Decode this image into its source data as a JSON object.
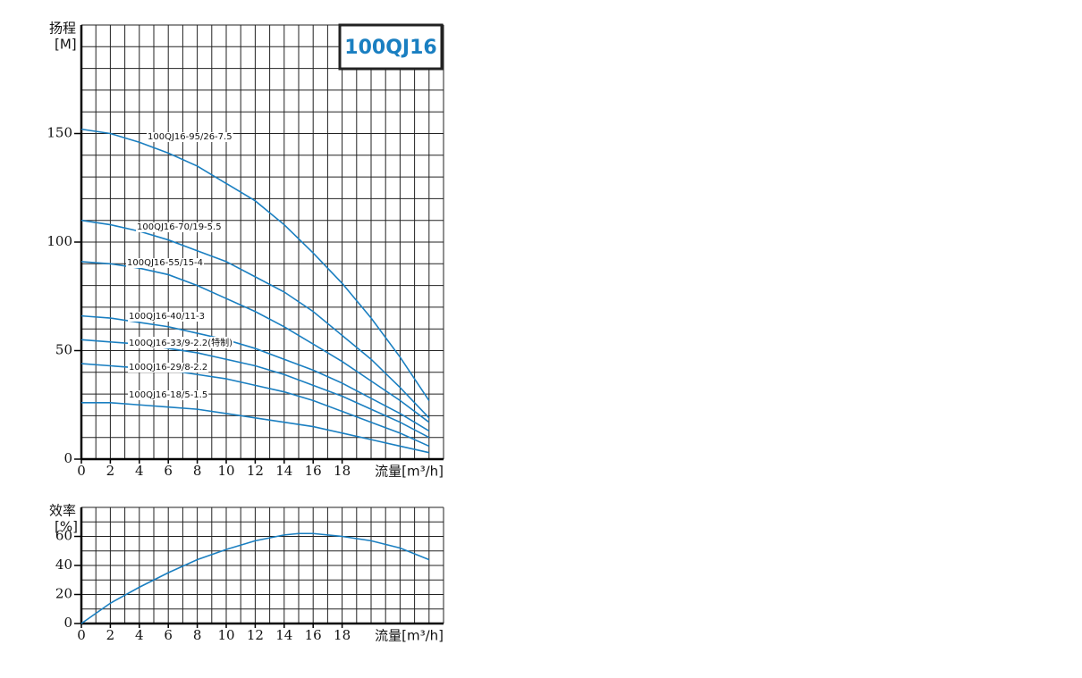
{
  "chart_data": [
    {
      "type": "line",
      "title": "100QJ16",
      "ylabel": [
        "扬程",
        "[M]"
      ],
      "xlabel": "流量[m³/h]",
      "x": [
        0,
        2,
        4,
        6,
        8,
        10,
        12,
        14,
        16,
        18,
        20,
        22,
        24
      ],
      "xlim": [
        0,
        25
      ],
      "xticks": [
        0,
        2,
        4,
        6,
        8,
        10,
        12,
        14,
        16,
        18
      ],
      "ylim": [
        0,
        200
      ],
      "yticks": [
        0,
        50,
        100,
        150
      ],
      "grid": true,
      "series": [
        {
          "name": "100QJ16-95/26-7.5",
          "color": "#1a7fc1",
          "values": [
            152,
            150,
            146,
            141,
            135,
            127,
            119,
            108,
            95,
            81,
            65,
            47,
            27
          ]
        },
        {
          "name": "100QJ16-70/19-5.5",
          "color": "#1a7fc1",
          "values": [
            110,
            108,
            105,
            101,
            96,
            91,
            84,
            77,
            68,
            57,
            46,
            33,
            19
          ]
        },
        {
          "name": "100QJ16-55/15-4",
          "color": "#1a7fc1",
          "values": [
            91,
            90,
            88,
            85,
            80,
            74,
            68,
            61,
            53,
            45,
            36,
            27,
            17
          ]
        },
        {
          "name": "100QJ16-40/11-3",
          "color": "#1a7fc1",
          "values": [
            66,
            65,
            63,
            61,
            58,
            55,
            51,
            46,
            41,
            35,
            28,
            21,
            13
          ]
        },
        {
          "name": "100QJ16-33/9-2.2(特制)",
          "color": "#1a7fc1",
          "values": [
            55,
            54,
            53,
            51,
            49,
            46,
            43,
            39,
            34,
            29,
            23,
            17,
            10
          ]
        },
        {
          "name": "100QJ16-29/8-2.2",
          "color": "#1a7fc1",
          "values": [
            44,
            43,
            42,
            41,
            39,
            37,
            34,
            31,
            27,
            22,
            17,
            12,
            6
          ]
        },
        {
          "name": "100QJ16-18/5-1.5",
          "color": "#1a7fc1",
          "values": [
            26,
            26,
            25,
            24,
            23,
            21,
            19,
            17,
            15,
            12,
            9,
            6,
            3
          ]
        }
      ]
    },
    {
      "type": "line",
      "ylabel": [
        "效率",
        "[%]"
      ],
      "xlabel": "流量[m³/h]",
      "x": [
        0,
        2,
        4,
        6,
        8,
        10,
        12,
        14,
        15,
        16,
        18,
        20,
        22,
        24
      ],
      "xlim": [
        0,
        25
      ],
      "xticks": [
        0,
        2,
        4,
        6,
        8,
        10,
        12,
        14,
        16,
        18
      ],
      "ylim": [
        0,
        80
      ],
      "yticks": [
        0,
        20,
        40,
        60
      ],
      "grid": true,
      "series": [
        {
          "color": "#1a7fc1",
          "values": [
            0,
            14,
            25,
            35,
            44,
            51,
            57,
            61,
            62,
            62,
            60,
            57,
            52,
            44
          ]
        }
      ]
    }
  ]
}
